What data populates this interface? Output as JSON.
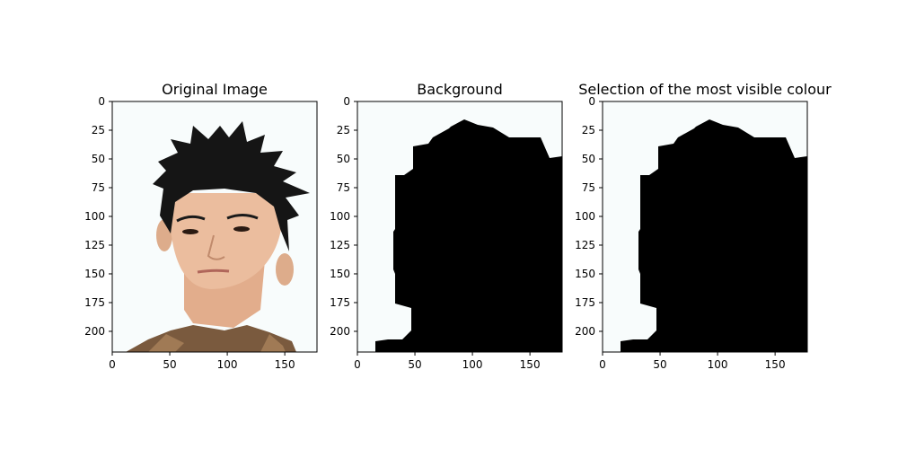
{
  "chart_data": [
    {
      "type": "image",
      "title": "Original Image",
      "xticks": [
        "0",
        "50",
        "100",
        "150"
      ],
      "yticks": [
        "0",
        "25",
        "50",
        "75",
        "100",
        "125",
        "150",
        "175",
        "200"
      ],
      "xlim": [
        0,
        178
      ],
      "ylim": [
        218,
        0
      ],
      "content": "photo of a young man with spiky black hair on a white background"
    },
    {
      "type": "image",
      "title": "Background",
      "xticks": [
        "0",
        "50",
        "100",
        "150"
      ],
      "yticks": [
        "0",
        "25",
        "50",
        "75",
        "100",
        "125",
        "150",
        "175",
        "200"
      ],
      "xlim": [
        0,
        178
      ],
      "ylim": [
        218,
        0
      ],
      "content": "binary mask: black head silhouette on near-white background"
    },
    {
      "type": "image",
      "title": "Selection of the most visible colour",
      "xticks": [
        "0",
        "50",
        "100",
        "150"
      ],
      "yticks": [
        "0",
        "25",
        "50",
        "75",
        "100",
        "125",
        "150",
        "175",
        "200"
      ],
      "xlim": [
        0,
        178
      ],
      "ylim": [
        218,
        0
      ],
      "content": "binary mask: black head silhouette on near-white background"
    }
  ],
  "colors": {
    "mask": "#000000",
    "background": "#f8fcfc",
    "skin": "#e8b89a",
    "hair": "#151515"
  }
}
